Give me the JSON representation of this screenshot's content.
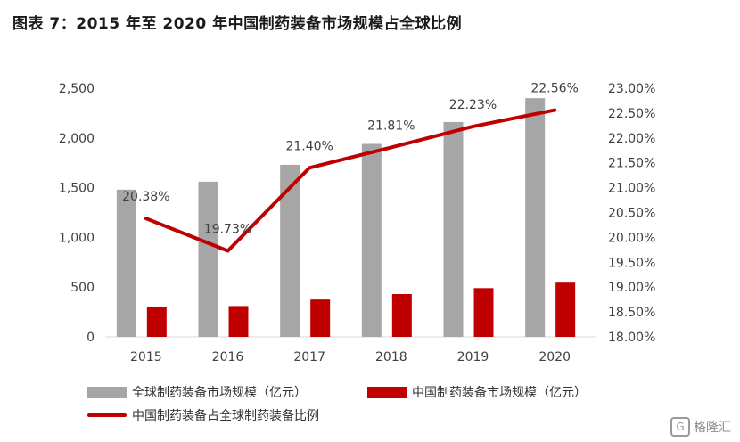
{
  "title": "图表 7：2015 年至 2020 年中国制药装备市场规模占全球比例",
  "colors": {
    "global_bar": "#a6a6a6",
    "china_bar": "#c00000",
    "ratio_line": "#c00000"
  },
  "chart_data": {
    "type": "bar",
    "categories": [
      "2015",
      "2016",
      "2017",
      "2018",
      "2019",
      "2020"
    ],
    "series": [
      {
        "name": "全球制药装备市场规模（亿元）",
        "type": "bar",
        "axis": "left",
        "values": [
          1480,
          1560,
          1730,
          1940,
          2160,
          2400
        ]
      },
      {
        "name": "中国制药装备市场规模（亿元）",
        "type": "bar",
        "axis": "left",
        "values": [
          305,
          310,
          375,
          430,
          490,
          545
        ]
      },
      {
        "name": "中国制药装备占全球制药装备比例",
        "type": "line",
        "axis": "right",
        "values": [
          20.38,
          19.73,
          21.4,
          21.81,
          22.23,
          22.56
        ],
        "labels": [
          "20.38%",
          "19.73%",
          "21.40%",
          "21.81%",
          "22.23%",
          "22.56%"
        ]
      }
    ],
    "y_left": {
      "min": 0,
      "max": 2500,
      "ticks": [
        0,
        500,
        1000,
        1500,
        2000,
        2500
      ],
      "tick_labels": [
        "0",
        "500",
        "1,000",
        "1,500",
        "2,000",
        "2,500"
      ]
    },
    "y_right": {
      "min": 18.0,
      "max": 23.0,
      "ticks": [
        18.0,
        18.5,
        19.0,
        19.5,
        20.0,
        20.5,
        21.0,
        21.5,
        22.0,
        22.5,
        23.0
      ],
      "tick_labels": [
        "18.00%",
        "18.50%",
        "19.00%",
        "19.50%",
        "20.00%",
        "20.50%",
        "21.00%",
        "21.50%",
        "22.00%",
        "22.50%",
        "23.00%"
      ]
    },
    "gridlines": false,
    "legend_position": "bottom"
  },
  "legend": {
    "global_label": "全球制药装备市场规模（亿元）",
    "china_label": "中国制药装备市场规模（亿元）",
    "ratio_label": "中国制药装备占全球制药装备比例"
  },
  "watermark": {
    "logo": "G",
    "text": "格隆汇"
  }
}
